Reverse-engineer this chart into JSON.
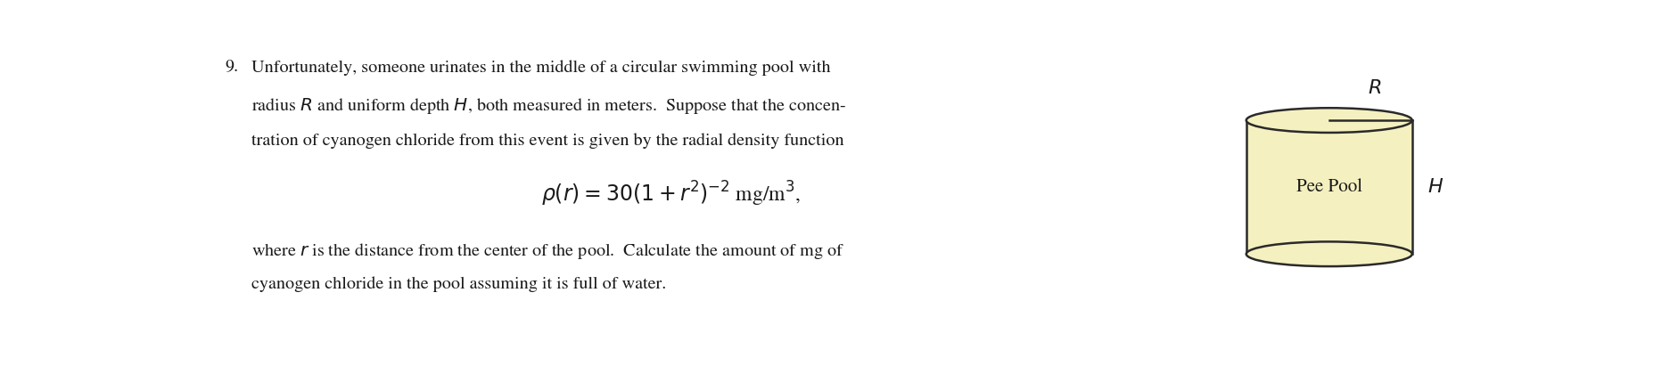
{
  "background_color": "#ffffff",
  "text_color": "#1a1a1a",
  "cylinder_fill": "#f5f0c0",
  "cylinder_edge": "#2a2a2a",
  "number_label": "9.",
  "line1": "Unfortunately, someone urinates in the middle of a circular swimming pool with",
  "line2": "radius $R$ and uniform depth $H$, both measured in meters.  Suppose that the concen-",
  "line3": "tration of cyanogen chloride from this event is given by the radial density function",
  "formula": "$\\rho(r) = 30(1 + r^2)^{-2}$ mg/m$^3$,",
  "line4": "where $r$ is the distance from the center of the pool.  Calculate the amount of mg of",
  "line5": "cyanogen chloride in the pool assuming it is full of water.",
  "label_R": "$R$",
  "label_H": "$H$",
  "label_pool": "Pee Pool",
  "fontsize_main": 14.5,
  "fontsize_formula": 17,
  "fontsize_label": 16,
  "fontsize_pool": 15
}
